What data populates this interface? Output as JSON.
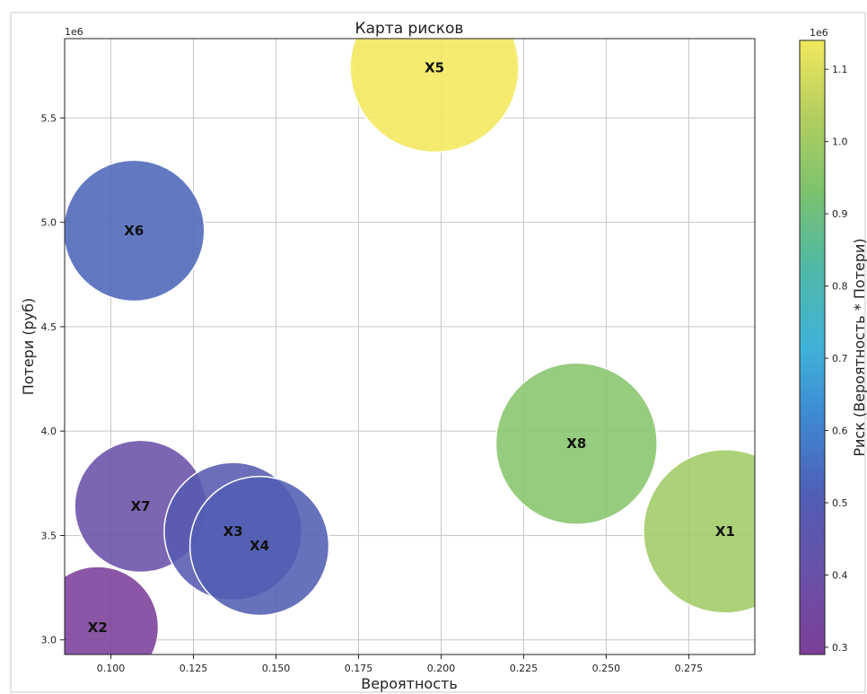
{
  "chart_data": {
    "type": "scatter",
    "title": "Карта рисков",
    "xlabel": "Вероятность",
    "ylabel": "Потери (руб)",
    "y_offset_text": "1e6",
    "xlim": [
      0.086,
      0.295
    ],
    "ylim": [
      2.93,
      5.88
    ],
    "x_ticks": [
      "0.100",
      "0.125",
      "0.150",
      "0.175",
      "0.200",
      "0.225",
      "0.250",
      "0.275"
    ],
    "x_tick_values": [
      0.1,
      0.125,
      0.15,
      0.175,
      0.2,
      0.225,
      0.25,
      0.275
    ],
    "y_ticks": [
      "3.0",
      "3.5",
      "4.0",
      "4.5",
      "5.0",
      "5.5"
    ],
    "y_tick_values": [
      3.0,
      3.5,
      4.0,
      4.5,
      5.0,
      5.5
    ],
    "grid": true,
    "colormap": "viridis",
    "colorbar": {
      "label": "Риск (Вероятность * Потери)",
      "offset_text": "1e6",
      "range": [
        0.29,
        1.14
      ],
      "ticks": [
        "0.3",
        "0.4",
        "0.5",
        "0.6",
        "0.7",
        "0.8",
        "0.9",
        "1.0",
        "1.1"
      ],
      "tick_values": [
        0.3,
        0.4,
        0.5,
        0.6,
        0.7,
        0.8,
        0.9,
        1.0,
        1.1
      ]
    },
    "points": [
      {
        "label": "X5",
        "x": 0.198,
        "y": 5.74,
        "risk": 1.14
      },
      {
        "label": "X6",
        "x": 0.107,
        "y": 4.96,
        "risk": 0.53
      },
      {
        "label": "X8",
        "x": 0.241,
        "y": 3.94,
        "risk": 0.95
      },
      {
        "label": "X1",
        "x": 0.286,
        "y": 3.52,
        "risk": 1.0
      },
      {
        "label": "X7",
        "x": 0.109,
        "y": 3.64,
        "risk": 0.4
      },
      {
        "label": "X3",
        "x": 0.137,
        "y": 3.52,
        "risk": 0.48
      },
      {
        "label": "X4",
        "x": 0.145,
        "y": 3.45,
        "risk": 0.5
      },
      {
        "label": "X2",
        "x": 0.096,
        "y": 3.06,
        "risk": 0.29
      }
    ]
  }
}
